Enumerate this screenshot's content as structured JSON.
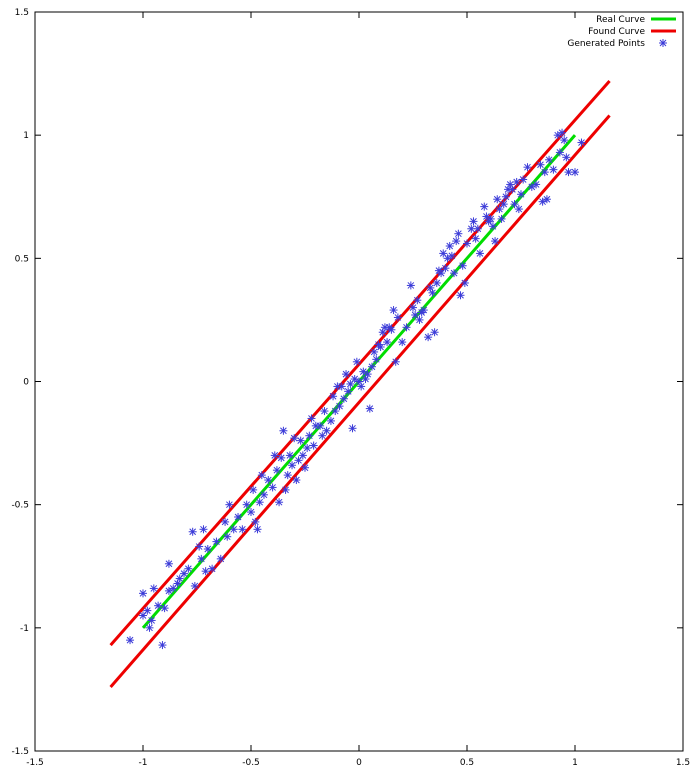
{
  "chart_data": {
    "type": "scatter",
    "title": "",
    "xlabel": "",
    "ylabel": "",
    "xlim": [
      -1.5,
      1.5
    ],
    "ylim": [
      -1.5,
      1.5
    ],
    "grid": false,
    "legend_position": "top-right",
    "x_ticks": [
      -1.5,
      -1,
      -0.5,
      0,
      0.5,
      1,
      1.5
    ],
    "y_ticks": [
      -1.5,
      -1,
      -0.5,
      0,
      0.5,
      1,
      1.5
    ],
    "x_tick_labels": [
      "-1.5",
      "-1",
      "-0.5",
      "0",
      "0.5",
      "1",
      "1.5"
    ],
    "y_tick_labels": [
      "-1.5",
      "-1",
      "-0.5",
      "0",
      "0.5",
      "1",
      "1.5"
    ],
    "legend": [
      "Real Curve",
      "Found Curve",
      "Generated Points"
    ],
    "colors": {
      "real": "#00dd00",
      "found": "#ee0000",
      "points": "#3b3bd8"
    },
    "series": [
      {
        "name": "Real Curve",
        "type": "line",
        "x": [
          -1.0,
          1.0
        ],
        "y": [
          -1.0,
          1.0
        ]
      },
      {
        "name": "Found Curve",
        "type": "line",
        "segments": [
          {
            "x": [
              -1.15,
              1.16
            ],
            "y": [
              -1.07,
              1.22
            ]
          },
          {
            "x": [
              -1.15,
              1.16
            ],
            "y": [
              -1.24,
              1.08
            ]
          }
        ]
      },
      {
        "name": "Generated Points",
        "type": "scatter",
        "marker": "star",
        "points": [
          [
            -1.06,
            -1.05
          ],
          [
            -1.0,
            -0.86
          ],
          [
            -1.0,
            -0.95
          ],
          [
            -0.98,
            -0.93
          ],
          [
            -0.97,
            -1.0
          ],
          [
            -0.96,
            -0.97
          ],
          [
            -0.95,
            -0.84
          ],
          [
            -0.93,
            -0.91
          ],
          [
            -0.91,
            -1.07
          ],
          [
            -0.9,
            -0.92
          ],
          [
            -0.88,
            -0.85
          ],
          [
            -0.88,
            -0.74
          ],
          [
            -0.86,
            -0.84
          ],
          [
            -0.84,
            -0.82
          ],
          [
            -0.83,
            -0.8
          ],
          [
            -0.81,
            -0.78
          ],
          [
            -0.79,
            -0.76
          ],
          [
            -0.77,
            -0.61
          ],
          [
            -0.76,
            -0.83
          ],
          [
            -0.74,
            -0.67
          ],
          [
            -0.73,
            -0.72
          ],
          [
            -0.72,
            -0.6
          ],
          [
            -0.71,
            -0.77
          ],
          [
            -0.7,
            -0.68
          ],
          [
            -0.68,
            -0.76
          ],
          [
            -0.66,
            -0.65
          ],
          [
            -0.64,
            -0.72
          ],
          [
            -0.62,
            -0.57
          ],
          [
            -0.61,
            -0.63
          ],
          [
            -0.6,
            -0.5
          ],
          [
            -0.58,
            -0.6
          ],
          [
            -0.56,
            -0.55
          ],
          [
            -0.54,
            -0.6
          ],
          [
            -0.52,
            -0.5
          ],
          [
            -0.5,
            -0.53
          ],
          [
            -0.49,
            -0.44
          ],
          [
            -0.48,
            -0.57
          ],
          [
            -0.47,
            -0.6
          ],
          [
            -0.46,
            -0.49
          ],
          [
            -0.45,
            -0.38
          ],
          [
            -0.44,
            -0.46
          ],
          [
            -0.42,
            -0.4
          ],
          [
            -0.4,
            -0.43
          ],
          [
            -0.39,
            -0.3
          ],
          [
            -0.38,
            -0.36
          ],
          [
            -0.37,
            -0.49
          ],
          [
            -0.36,
            -0.31
          ],
          [
            -0.35,
            -0.2
          ],
          [
            -0.34,
            -0.44
          ],
          [
            -0.33,
            -0.38
          ],
          [
            -0.32,
            -0.3
          ],
          [
            -0.31,
            -0.34
          ],
          [
            -0.3,
            -0.23
          ],
          [
            -0.29,
            -0.4
          ],
          [
            -0.28,
            -0.32
          ],
          [
            -0.27,
            -0.24
          ],
          [
            -0.26,
            -0.3
          ],
          [
            -0.25,
            -0.35
          ],
          [
            -0.24,
            -0.27
          ],
          [
            -0.23,
            -0.22
          ],
          [
            -0.22,
            -0.15
          ],
          [
            -0.21,
            -0.26
          ],
          [
            -0.2,
            -0.18
          ],
          [
            -0.18,
            -0.18
          ],
          [
            -0.17,
            -0.22
          ],
          [
            -0.16,
            -0.12
          ],
          [
            -0.15,
            -0.2
          ],
          [
            -0.13,
            -0.16
          ],
          [
            -0.12,
            -0.06
          ],
          [
            -0.11,
            -0.12
          ],
          [
            -0.1,
            -0.02
          ],
          [
            -0.09,
            -0.1
          ],
          [
            -0.08,
            -0.02
          ],
          [
            -0.07,
            -0.07
          ],
          [
            -0.06,
            0.03
          ],
          [
            -0.05,
            -0.04
          ],
          [
            -0.04,
            -0.01
          ],
          [
            -0.03,
            -0.19
          ],
          [
            -0.02,
            0.01
          ],
          [
            -0.01,
            0.08
          ],
          [
            0.0,
            0.0
          ],
          [
            0.01,
            -0.02
          ],
          [
            0.02,
            0.04
          ],
          [
            0.03,
            0.01
          ],
          [
            0.04,
            0.03
          ],
          [
            0.05,
            -0.11
          ],
          [
            0.06,
            0.06
          ],
          [
            0.07,
            0.12
          ],
          [
            0.08,
            0.09
          ],
          [
            0.09,
            0.15
          ],
          [
            0.1,
            0.14
          ],
          [
            0.11,
            0.2
          ],
          [
            0.12,
            0.22
          ],
          [
            0.13,
            0.16
          ],
          [
            0.14,
            0.22
          ],
          [
            0.15,
            0.21
          ],
          [
            0.16,
            0.29
          ],
          [
            0.17,
            0.08
          ],
          [
            0.18,
            0.26
          ],
          [
            0.2,
            0.16
          ],
          [
            0.22,
            0.22
          ],
          [
            0.24,
            0.39
          ],
          [
            0.25,
            0.3
          ],
          [
            0.26,
            0.27
          ],
          [
            0.27,
            0.33
          ],
          [
            0.28,
            0.25
          ],
          [
            0.29,
            0.28
          ],
          [
            0.3,
            0.29
          ],
          [
            0.32,
            0.18
          ],
          [
            0.33,
            0.38
          ],
          [
            0.34,
            0.36
          ],
          [
            0.35,
            0.2
          ],
          [
            0.36,
            0.4
          ],
          [
            0.37,
            0.45
          ],
          [
            0.38,
            0.44
          ],
          [
            0.39,
            0.52
          ],
          [
            0.4,
            0.46
          ],
          [
            0.41,
            0.5
          ],
          [
            0.42,
            0.55
          ],
          [
            0.43,
            0.51
          ],
          [
            0.44,
            0.44
          ],
          [
            0.45,
            0.57
          ],
          [
            0.46,
            0.6
          ],
          [
            0.47,
            0.35
          ],
          [
            0.48,
            0.47
          ],
          [
            0.49,
            0.4
          ],
          [
            0.5,
            0.56
          ],
          [
            0.52,
            0.62
          ],
          [
            0.53,
            0.65
          ],
          [
            0.54,
            0.58
          ],
          [
            0.55,
            0.62
          ],
          [
            0.56,
            0.52
          ],
          [
            0.58,
            0.71
          ],
          [
            0.59,
            0.67
          ],
          [
            0.6,
            0.65
          ],
          [
            0.61,
            0.66
          ],
          [
            0.62,
            0.63
          ],
          [
            0.63,
            0.57
          ],
          [
            0.64,
            0.74
          ],
          [
            0.65,
            0.7
          ],
          [
            0.66,
            0.66
          ],
          [
            0.67,
            0.72
          ],
          [
            0.68,
            0.75
          ],
          [
            0.69,
            0.78
          ],
          [
            0.7,
            0.8
          ],
          [
            0.71,
            0.78
          ],
          [
            0.72,
            0.72
          ],
          [
            0.73,
            0.81
          ],
          [
            0.74,
            0.7
          ],
          [
            0.75,
            0.76
          ],
          [
            0.76,
            0.82
          ],
          [
            0.78,
            0.87
          ],
          [
            0.8,
            0.79
          ],
          [
            0.82,
            0.8
          ],
          [
            0.84,
            0.88
          ],
          [
            0.85,
            0.73
          ],
          [
            0.86,
            0.85
          ],
          [
            0.87,
            0.74
          ],
          [
            0.88,
            0.9
          ],
          [
            0.9,
            0.86
          ],
          [
            0.92,
            1.0
          ],
          [
            0.93,
            0.93
          ],
          [
            0.94,
            1.01
          ],
          [
            0.95,
            0.98
          ],
          [
            0.96,
            0.91
          ],
          [
            0.97,
            0.85
          ],
          [
            1.0,
            0.85
          ],
          [
            1.03,
            0.97
          ]
        ]
      }
    ]
  }
}
